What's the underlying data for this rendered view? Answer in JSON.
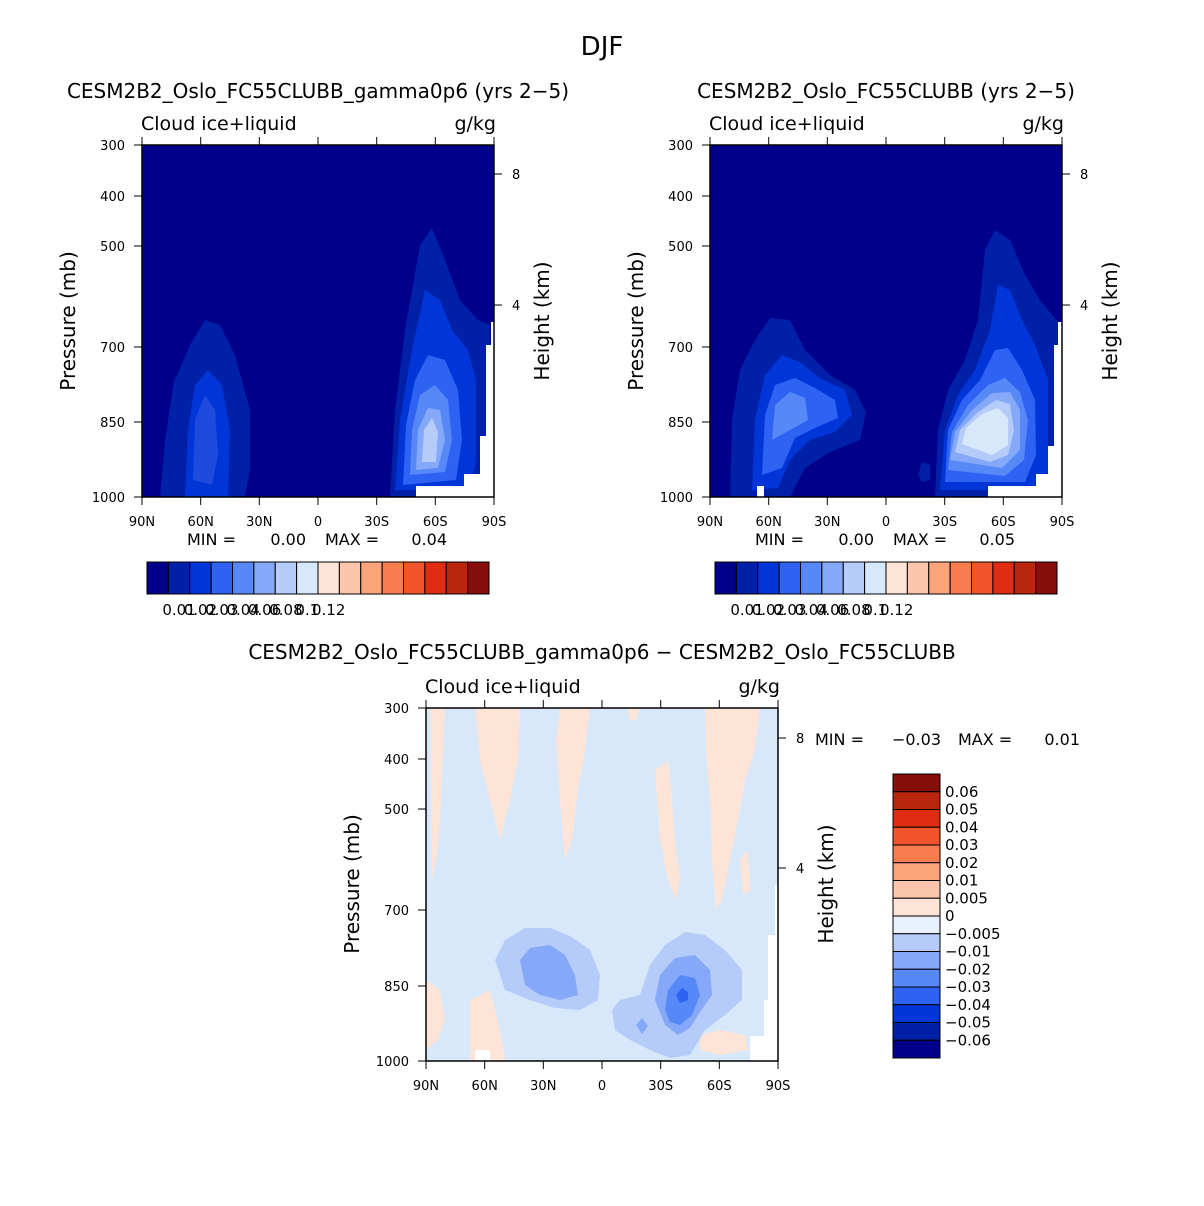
{
  "figure_title": "DJF",
  "chart_data": [
    {
      "type": "heatmap",
      "title": "CESM2B2_Oslo_FC55CLUBB_gamma0p6 (yrs 2−5)",
      "variable_label": "Cloud ice+liquid",
      "units": "g/kg",
      "xlabel": "",
      "ylabel": "Pressure (mb)",
      "y2label": "Height (km)",
      "x_ticks": [
        "90N",
        "60N",
        "30N",
        "0",
        "30S",
        "60S",
        "90S"
      ],
      "x_range": [
        90,
        -90
      ],
      "y_ticks": [
        "300",
        "400",
        "500",
        "700",
        "850",
        "1000"
      ],
      "y_range_mb": [
        1000,
        300
      ],
      "y2_ticks": [
        "8",
        "4"
      ],
      "min_label": "MIN =",
      "min_value": "0.00",
      "max_label": "MAX =",
      "max_value": "0.04",
      "colorbar": {
        "tick_labels": [
          "0.01",
          "0.02",
          "0.03",
          "0.04",
          "0.06",
          "0.08",
          "0.1",
          "0.12"
        ],
        "colors": [
          "#00008b",
          "#0020a8",
          "#0035d8",
          "#2e62f2",
          "#5689f7",
          "#85a9f8",
          "#b5cbf9",
          "#d8e8fb",
          "#fde4d6",
          "#fcc6ac",
          "#fba47c",
          "#f77d4e",
          "#f2542c",
          "#e12c14",
          "#b8260d",
          "#860f09"
        ]
      },
      "features": [
        {
          "name": "southern-hemisphere-max",
          "lat": -62,
          "p_mb": 870,
          "value": 0.04
        },
        {
          "name": "northern-hemisphere-max",
          "lat": 60,
          "p_mb": 850,
          "value": 0.025
        }
      ]
    },
    {
      "type": "heatmap",
      "title": "CESM2B2_Oslo_FC55CLUBB (yrs 2−5)",
      "variable_label": "Cloud ice+liquid",
      "units": "g/kg",
      "xlabel": "",
      "ylabel": "Pressure (mb)",
      "y2label": "Height (km)",
      "x_ticks": [
        "90N",
        "60N",
        "30N",
        "0",
        "30S",
        "60S",
        "90S"
      ],
      "x_range": [
        90,
        -90
      ],
      "y_ticks": [
        "300",
        "400",
        "500",
        "700",
        "850",
        "1000"
      ],
      "y_range_mb": [
        1000,
        300
      ],
      "y2_ticks": [
        "8",
        "4"
      ],
      "min_label": "MIN =",
      "min_value": "0.00",
      "max_label": "MAX =",
      "max_value": "0.05",
      "colorbar": {
        "tick_labels": [
          "0.01",
          "0.02",
          "0.03",
          "0.04",
          "0.06",
          "0.08",
          "0.1",
          "0.12"
        ],
        "colors": [
          "#00008b",
          "#0020a8",
          "#0035d8",
          "#2e62f2",
          "#5689f7",
          "#85a9f8",
          "#b5cbf9",
          "#d8e8fb",
          "#fde4d6",
          "#fcc6ac",
          "#fba47c",
          "#f77d4e",
          "#f2542c",
          "#e12c14",
          "#b8260d",
          "#860f09"
        ]
      },
      "features": [
        {
          "name": "southern-hemisphere-max",
          "lat": -55,
          "p_mb": 840,
          "value": 0.05
        },
        {
          "name": "northern-hemisphere-max",
          "lat": 58,
          "p_mb": 820,
          "value": 0.03
        }
      ]
    },
    {
      "type": "heatmap",
      "title": "CESM2B2_Oslo_FC55CLUBB_gamma0p6 − CESM2B2_Oslo_FC55CLUBB",
      "variable_label": "Cloud ice+liquid",
      "units": "g/kg",
      "xlabel": "",
      "ylabel": "Pressure (mb)",
      "y2label": "Height (km)",
      "x_ticks": [
        "90N",
        "60N",
        "30N",
        "0",
        "30S",
        "60S",
        "90S"
      ],
      "x_range": [
        90,
        -90
      ],
      "y_ticks": [
        "300",
        "400",
        "500",
        "700",
        "850",
        "1000"
      ],
      "y_range_mb": [
        1000,
        300
      ],
      "y2_ticks": [
        "8",
        "4"
      ],
      "min_label": "MIN =",
      "min_value": "−0.03",
      "max_label": "MAX =",
      "max_value": "0.01",
      "colorbar": {
        "tick_labels": [
          "0.06",
          "0.05",
          "0.04",
          "0.03",
          "0.02",
          "0.01",
          "0.005",
          "0",
          "−0.005",
          "−0.01",
          "−0.02",
          "−0.03",
          "−0.04",
          "−0.05",
          "−0.06"
        ],
        "colors": [
          "#860f09",
          "#b8260d",
          "#e12c14",
          "#f2542c",
          "#f77d4e",
          "#fba47c",
          "#fcc6ac",
          "#fde4d6",
          "#e8f0fc",
          "#b5cbf9",
          "#85a9f8",
          "#5689f7",
          "#2e62f2",
          "#0035d8",
          "#0020a8",
          "#00008b"
        ]
      },
      "features": [
        {
          "name": "northern-hemisphere-min",
          "lat": 30,
          "p_mb": 830,
          "value": -0.02
        },
        {
          "name": "southern-hemisphere-min",
          "lat": -40,
          "p_mb": 860,
          "value": -0.03
        }
      ]
    }
  ]
}
